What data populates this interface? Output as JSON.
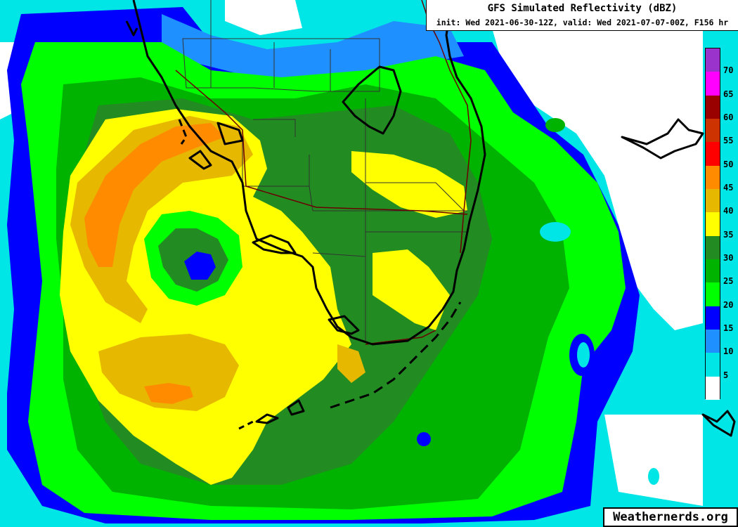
{
  "title": {
    "main": "GFS Simulated Reflectivity (dBZ)",
    "sub": "init: Wed 2021-06-30-12Z, valid: Wed 2021-07-07-00Z, F156 hr"
  },
  "legend": {
    "unit": "dBZ",
    "bins": [
      {
        "label": "70",
        "color": "#9933cc"
      },
      {
        "label": "65",
        "color": "#ff00ff"
      },
      {
        "label": "60",
        "color": "#990000"
      },
      {
        "label": "55",
        "color": "#cc3300"
      },
      {
        "label": "50",
        "color": "#ff0000"
      },
      {
        "label": "45",
        "color": "#ff8c00"
      },
      {
        "label": "40",
        "color": "#e6b800"
      },
      {
        "label": "35",
        "color": "#ffff00"
      },
      {
        "label": "30",
        "color": "#228b22"
      },
      {
        "label": "25",
        "color": "#00b300"
      },
      {
        "label": "20",
        "color": "#00ff00"
      },
      {
        "label": "15",
        "color": "#0000ff"
      },
      {
        "label": "10",
        "color": "#1e90ff"
      },
      {
        "label": "5",
        "color": "#00e5e5"
      },
      {
        "label": "",
        "color": "#ffffff"
      }
    ]
  },
  "credit": "Weathernerds.org",
  "map_colors": {
    "cyan": "#00e5e5",
    "lightblue": "#1e90ff",
    "blue": "#0000ff",
    "lime": "#00ff00",
    "green": "#00b300",
    "darkgreen": "#228b22",
    "yellow": "#ffff00",
    "gold": "#e6b800",
    "orange": "#ff8c00",
    "coast": "#000000",
    "county": "#333333",
    "road": "#6b0000"
  }
}
